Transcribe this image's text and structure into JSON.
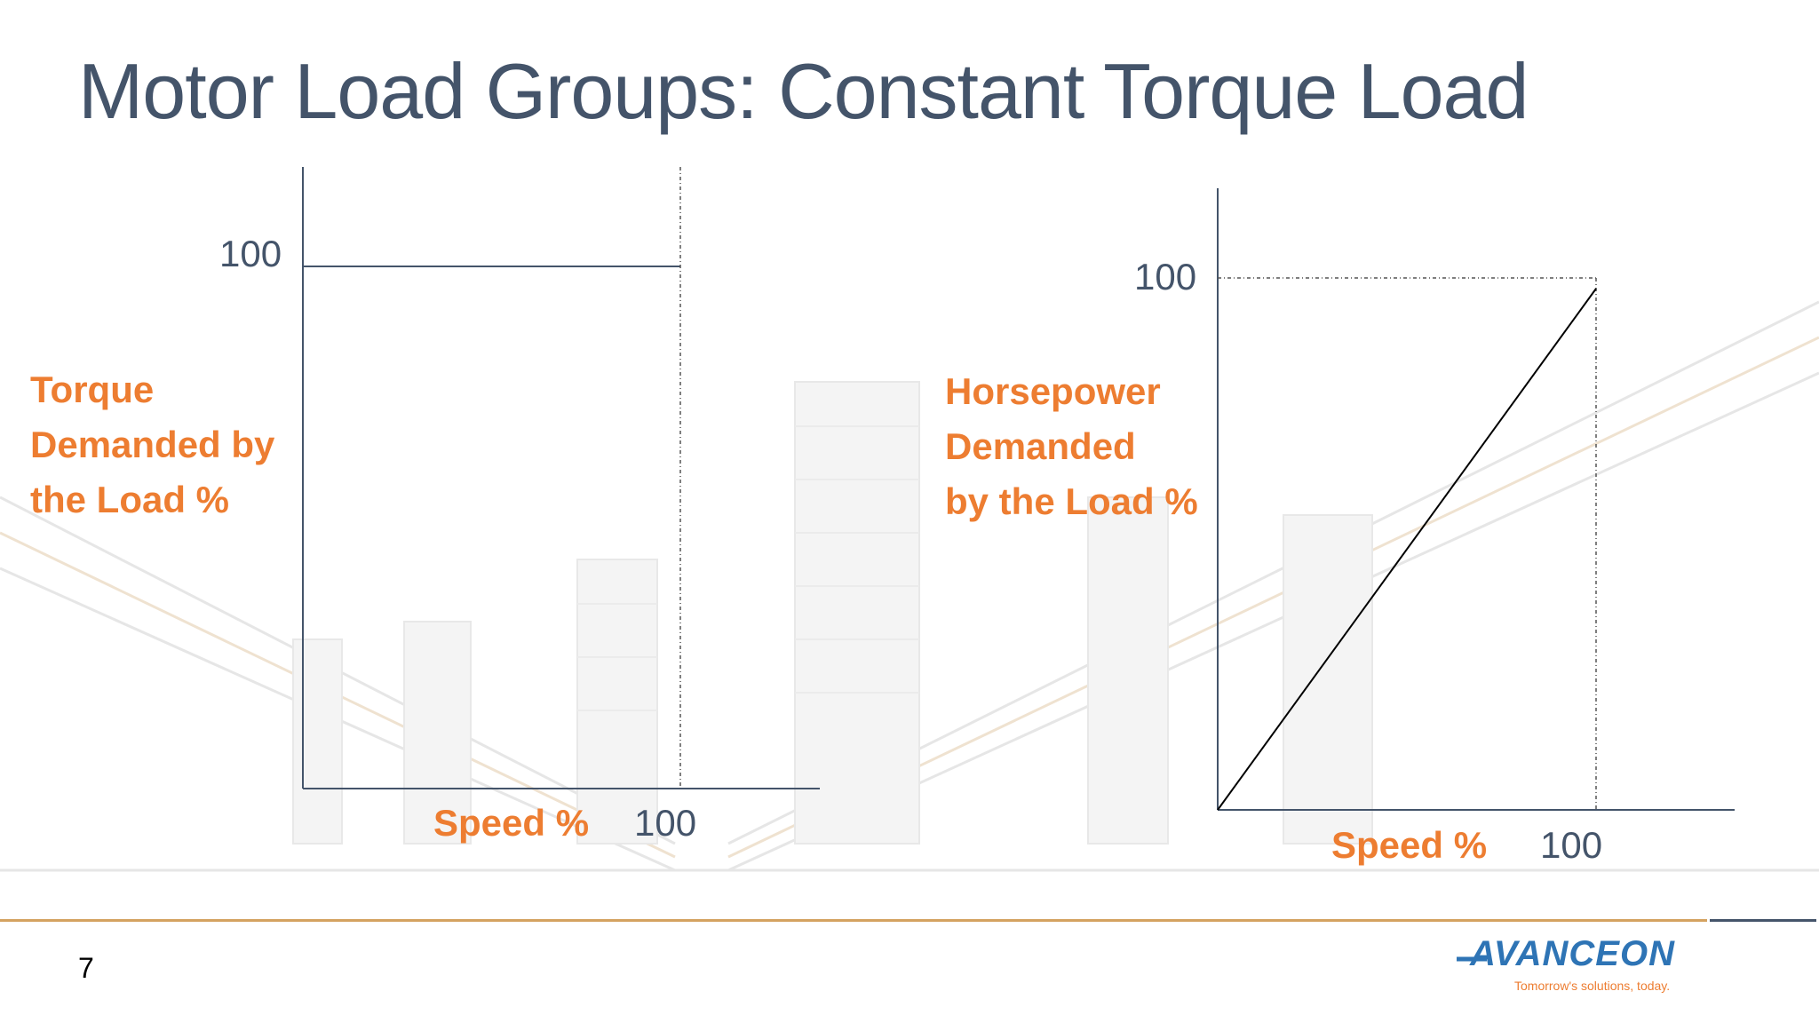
{
  "slide": {
    "title": "Motor Load Groups: Constant Torque Load",
    "page_number": "7"
  },
  "logo": {
    "name": "AVANCEON",
    "tagline": "Tomorrow's solutions, today."
  },
  "diagrams": [
    {
      "id": "torque",
      "y_tick": "100",
      "x_tick": "100",
      "y_label_lines": [
        "Torque",
        "Demanded by",
        "the Load %"
      ],
      "x_label": "Speed %",
      "curve": "constant"
    },
    {
      "id": "horsepower",
      "y_tick": "100",
      "x_tick": "100",
      "y_label_lines": [
        "Horsepower",
        "Demanded",
        "by the Load %"
      ],
      "x_label": "Speed %",
      "curve": "linear"
    }
  ],
  "colors": {
    "title": "#44546a",
    "label": "#ed7d31",
    "axis": "#44546a",
    "logo": "#2e74b5"
  }
}
